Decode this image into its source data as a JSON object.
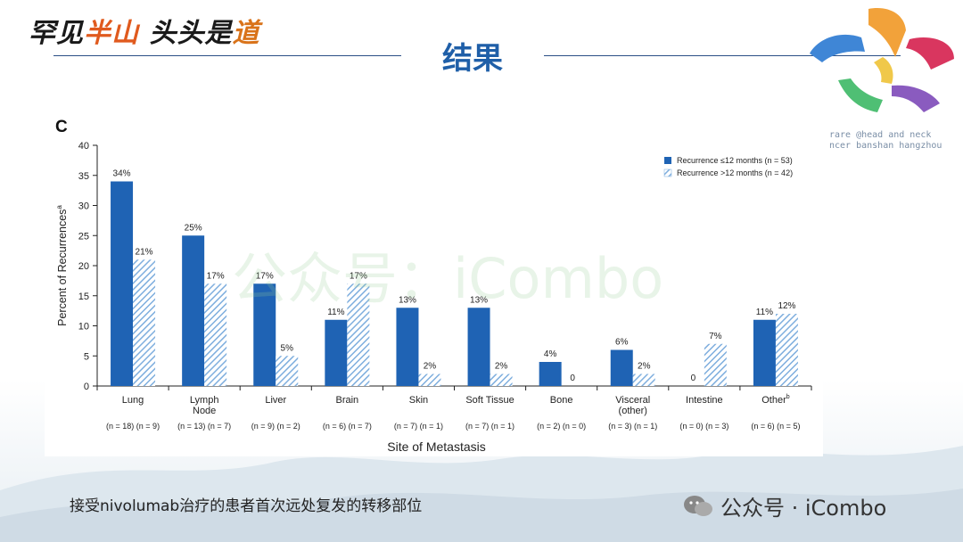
{
  "header": {
    "brand_parts": [
      "罕见",
      "半山",
      "头头是",
      "道"
    ],
    "title": "结果"
  },
  "logo": {
    "line1": "rare @head and neck",
    "line2": "ncer banshan hangzhou"
  },
  "caption": "接受nivolumab治疗的患者首次远处复发的转移部位",
  "watermark": {
    "overlay_text": "公众号：iCombo",
    "footer_text": "公众号 · iCombo"
  },
  "colors": {
    "accent_blue": "#1f5fa8",
    "bar_solid": "#1f63b4",
    "bar_hatch": "#7eaede"
  },
  "chart_data": {
    "type": "bar",
    "panel_label": "C",
    "categories": [
      "Lung",
      "Lymph Node",
      "Liver",
      "Brain",
      "Skin",
      "Soft Tissue",
      "Bone",
      "Visceral (other)",
      "Intestine",
      "Other"
    ],
    "category_lines": [
      [
        "Lung"
      ],
      [
        "Lymph",
        "Node"
      ],
      [
        "Liver"
      ],
      [
        "Brain"
      ],
      [
        "Skin"
      ],
      [
        "Soft Tissue"
      ],
      [
        "Bone"
      ],
      [
        "Visceral",
        "(other)"
      ],
      [
        "Intestine"
      ],
      [
        "Other"
      ]
    ],
    "category_superscripts": [
      "",
      "",
      "",
      "",
      "",
      "",
      "",
      "",
      "",
      "b"
    ],
    "counts": [
      "(n = 18) (n = 9)",
      "(n = 13) (n = 7)",
      "(n = 9) (n = 2)",
      "(n = 6) (n = 7)",
      "(n = 7) (n = 1)",
      "(n = 7) (n = 1)",
      "(n = 2) (n = 0)",
      "(n = 3) (n = 1)",
      "(n = 0) (n = 3)",
      "(n = 6) (n = 5)"
    ],
    "series": [
      {
        "name": "Recurrence ≤12 months (n = 53)",
        "values": [
          34,
          25,
          17,
          11,
          13,
          13,
          4,
          6,
          0,
          11
        ],
        "labels": [
          "34%",
          "25%",
          "17%",
          "11%",
          "13%",
          "13%",
          "4%",
          "6%",
          "0",
          "11%"
        ]
      },
      {
        "name": "Recurrence >12 months (n = 42)",
        "values": [
          21,
          17,
          5,
          17,
          2,
          2,
          0,
          2,
          7,
          12
        ],
        "labels": [
          "21%",
          "17%",
          "5%",
          "17%",
          "2%",
          "2%",
          "0",
          "2%",
          "7%",
          "12%"
        ]
      }
    ],
    "xlabel": "Site of Metastasis",
    "ylabel": "Percent of Recurrences",
    "ylabel_superscript": "a",
    "ylim": [
      0,
      40
    ],
    "yticks": [
      "0",
      "5",
      "10",
      "15",
      "20",
      "25",
      "30",
      "35",
      "40"
    ],
    "legend_position": "top-right",
    "grid": false
  }
}
